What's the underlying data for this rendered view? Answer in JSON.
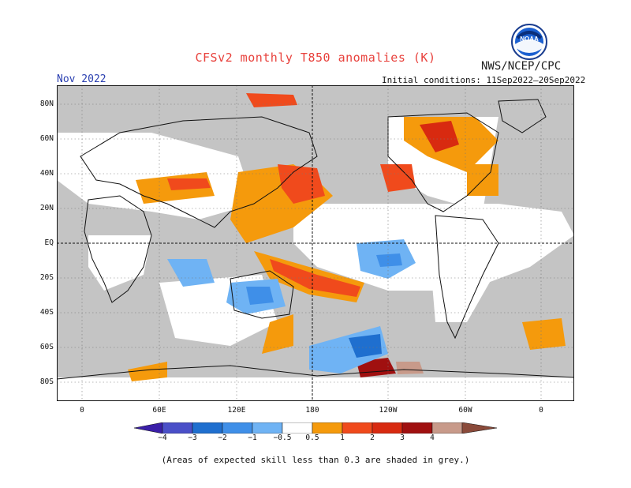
{
  "title": "CFSv2 monthly T850 anomalies (K)",
  "organization": "NWS/NCEP/CPC",
  "logo_text": "NOAA",
  "forecast_month": "Nov 2022",
  "initial_conditions": "Initial conditions: 11Sep2022–20Sep2022",
  "lat_labels": [
    "80N",
    "60N",
    "40N",
    "20N",
    "EQ",
    "20S",
    "40S",
    "60S",
    "80S"
  ],
  "lon_labels": [
    "0",
    "60E",
    "120E",
    "180",
    "120W",
    "60W",
    "0"
  ],
  "colorbar": {
    "labels": [
      "−4",
      "−3",
      "−2",
      "−1",
      "−0.5",
      "0.5",
      "1",
      "2",
      "3",
      "4"
    ],
    "colors": [
      "#3a1fa8",
      "#4a4fc8",
      "#1f6fcf",
      "#3f8fe8",
      "#6fb3f4",
      "#ffffff",
      "#f59a0c",
      "#f04a1c",
      "#d82a10",
      "#a01010",
      "#c89a8a",
      "#8a4a3a"
    ]
  },
  "colors": {
    "skill_grey": "#c4c4c4",
    "coast": "#111111",
    "warm_weak": "#f59a0c",
    "warm_mid": "#f04a1c",
    "warm_strong": "#a01010",
    "cold_weak": "#6fb3f4",
    "cold_mid": "#3f8fe8",
    "cold_strong": "#1f6fcf"
  },
  "footnote": "(Areas of expected skill less than 0.3 are shaded in grey.)"
}
